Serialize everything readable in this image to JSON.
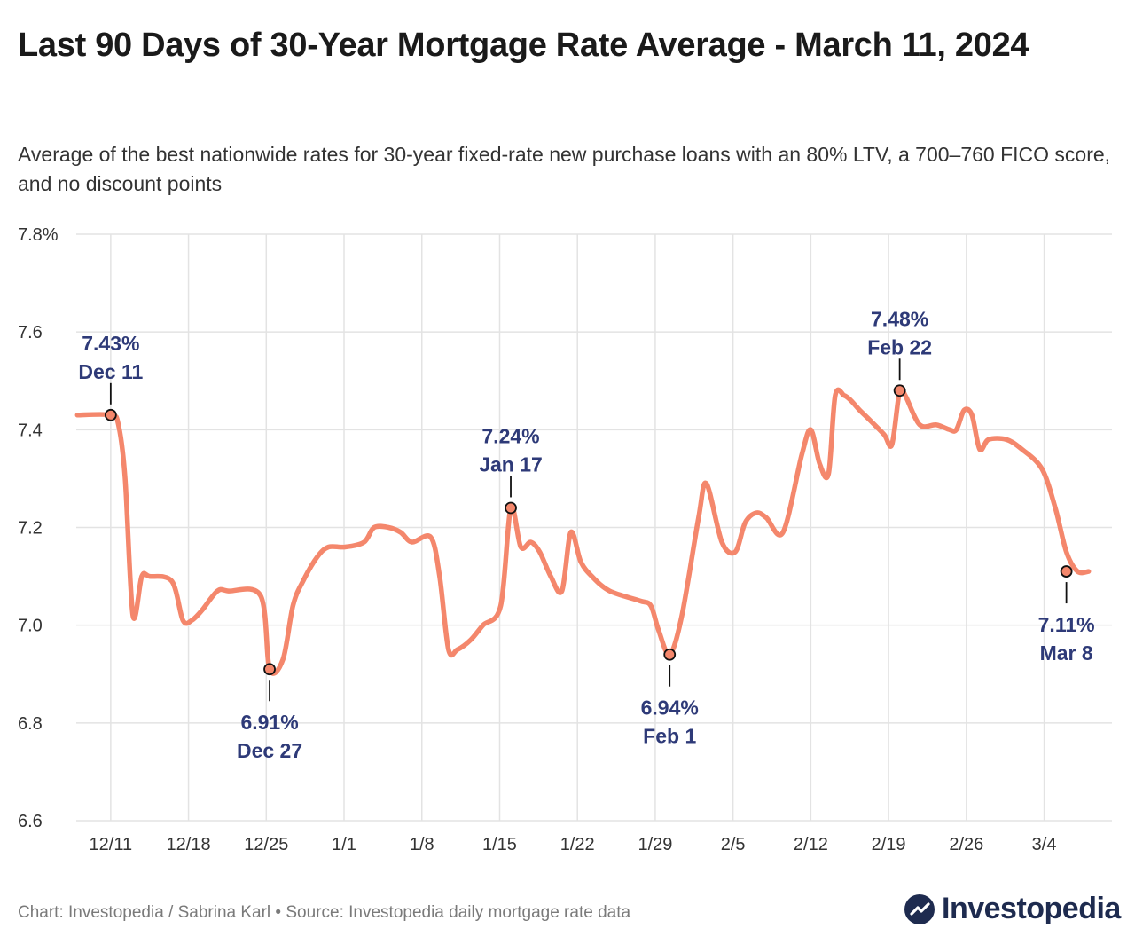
{
  "header": {
    "title": "Last 90 Days of 30-Year Mortgage Rate Average - March 11, 2024",
    "subtitle": "Average of the best nationwide rates for 30-year fixed-rate new purchase loans with an 80% LTV, a 700–760 FICO score, and no discount points"
  },
  "footer": {
    "credit": "Chart: Investopedia / Sabrina Karl • Source: Investopedia daily mortgage rate data",
    "logo_text": "Investopedia"
  },
  "colors": {
    "line": "#f4876c",
    "annotation": "#2e3a78",
    "grid": "#e3e3e3",
    "logo": "#1e2b4f"
  },
  "chart_data": {
    "type": "line",
    "title": "Last 90 Days of 30-Year Mortgage Rate Average - March 11, 2024",
    "xlabel": "",
    "ylabel": "",
    "ylim": [
      6.6,
      7.8
    ],
    "xlim": [
      -3.1,
      90.1
    ],
    "yticks": [
      6.6,
      6.8,
      7.0,
      7.2,
      7.4,
      7.6,
      7.8
    ],
    "ytick_labels": [
      "6.6",
      "6.8",
      "7.0",
      "7.2",
      "7.4",
      "7.6",
      "7.8%"
    ],
    "xticks": [
      0,
      7,
      14,
      21,
      28,
      35,
      42,
      49,
      56,
      63,
      70,
      77,
      84
    ],
    "xtick_labels": [
      "12/11",
      "12/18",
      "12/25",
      "1/1",
      "1/8",
      "1/15",
      "1/22",
      "1/29",
      "2/5",
      "2/12",
      "2/19",
      "2/26",
      "3/4"
    ],
    "grid": true,
    "series": [
      {
        "name": "30-Year Mortgage Rate Average",
        "x": [
          -3,
          0,
          0.7,
          1.3,
          2,
          2.8,
          3.5,
          5.5,
          6.5,
          7.3,
          8.2,
          9.6,
          10.6,
          13.5,
          14.3,
          15.5,
          16.4,
          17.3,
          18.6,
          19.6,
          21.1,
          22.8,
          23.7,
          25.0,
          26.1,
          27.1,
          28.8,
          29.6,
          30.4,
          31.2,
          32.4,
          33.5,
          35.1,
          36.0,
          36.9,
          37.8,
          38.6,
          39.6,
          40.6,
          41.4,
          42.3,
          43.3,
          44.9,
          47.6,
          48.6,
          49.3,
          50.3,
          51.4,
          52.9,
          53.6,
          55.0,
          56.2,
          57.1,
          58.1,
          59.0,
          60.5,
          62.2,
          63.0,
          63.8,
          64.6,
          65.2,
          66.0,
          66.6,
          67.4,
          68.3,
          69.6,
          70.3,
          71.0,
          71.5,
          72.8,
          74.3,
          75.5,
          76.1,
          76.8,
          77.5,
          78.2,
          79.0,
          80.6,
          82.0,
          83.8,
          85.0,
          86.0,
          87.0,
          88.0
        ],
        "y": [
          7.43,
          7.43,
          7.41,
          7.3,
          7.02,
          7.1,
          7.1,
          7.09,
          7.01,
          7.01,
          7.03,
          7.07,
          7.07,
          7.06,
          6.91,
          6.93,
          7.04,
          7.09,
          7.14,
          7.16,
          7.16,
          7.17,
          7.2,
          7.2,
          7.19,
          7.17,
          7.18,
          7.1,
          6.95,
          6.95,
          6.97,
          7.0,
          7.04,
          7.24,
          7.16,
          7.17,
          7.15,
          7.1,
          7.07,
          7.19,
          7.13,
          7.1,
          7.07,
          7.05,
          7.04,
          6.99,
          6.94,
          7.02,
          7.22,
          7.29,
          7.17,
          7.15,
          7.21,
          7.23,
          7.22,
          7.19,
          7.35,
          7.4,
          7.33,
          7.31,
          7.47,
          7.47,
          7.46,
          7.44,
          7.42,
          7.39,
          7.37,
          7.48,
          7.47,
          7.41,
          7.41,
          7.4,
          7.4,
          7.44,
          7.43,
          7.36,
          7.38,
          7.38,
          7.36,
          7.32,
          7.24,
          7.15,
          7.11,
          7.11
        ]
      }
    ],
    "annotations": [
      {
        "x": 0,
        "y": 7.43,
        "value": "7.43%",
        "date": "Dec 11",
        "position": "above"
      },
      {
        "x": 14.3,
        "y": 6.91,
        "value": "6.91%",
        "date": "Dec 27",
        "position": "below"
      },
      {
        "x": 36.0,
        "y": 7.24,
        "value": "7.24%",
        "date": "Jan 17",
        "position": "above"
      },
      {
        "x": 50.3,
        "y": 6.94,
        "value": "6.94%",
        "date": "Feb 1",
        "position": "below"
      },
      {
        "x": 71.0,
        "y": 7.48,
        "value": "7.48%",
        "date": "Feb 22",
        "position": "above"
      },
      {
        "x": 86.0,
        "y": 7.11,
        "value": "7.11%",
        "date": "Mar 8",
        "position": "below"
      }
    ]
  }
}
